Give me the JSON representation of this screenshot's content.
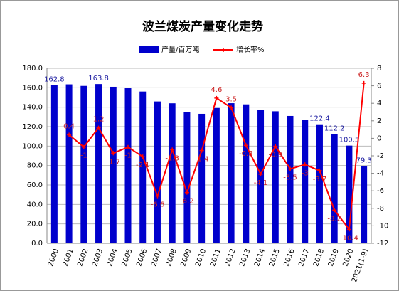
{
  "chart_data": {
    "type": "bar_line",
    "title": "波兰煤炭产量变化走势",
    "categories": [
      "2000",
      "2001",
      "2002",
      "2003",
      "2004",
      "2005",
      "2006",
      "2007",
      "2008",
      "2009",
      "2010",
      "2011",
      "2012",
      "2013",
      "2014",
      "2015",
      "2016",
      "2017",
      "2018",
      "2019",
      "2020",
      "2021(1-9)"
    ],
    "series": [
      {
        "name": "产量/百万吨",
        "color": "#0000cc",
        "type": "bar",
        "values": [
          162.8,
          163.5,
          161.9,
          163.8,
          161.0,
          159.5,
          156.1,
          145.9,
          144.0,
          135.1,
          133.2,
          139.2,
          144.1,
          142.9,
          137.1,
          135.8,
          131.0,
          127.1,
          122.4,
          112.2,
          100.5,
          79.3
        ],
        "value_labels": [
          "162.8",
          null,
          null,
          "163.8",
          null,
          null,
          null,
          null,
          null,
          null,
          null,
          null,
          null,
          null,
          null,
          null,
          null,
          null,
          "122.4",
          "112.2",
          "100.5",
          "79.3"
        ]
      },
      {
        "name": "增长率%",
        "color": "#ff0000",
        "type": "line",
        "axis": "y2",
        "values": [
          null,
          0.4,
          -1.0,
          1.2,
          -1.7,
          -1.0,
          -2.1,
          -6.6,
          -1.3,
          -6.2,
          -1.4,
          4.6,
          3.5,
          -0.8,
          -4.1,
          -0.9,
          -3.5,
          -3.0,
          -3.7,
          -8.2,
          -10.4,
          6.3
        ]
      }
    ],
    "ylim": [
      0,
      180
    ],
    "yticks": [
      {
        "value": 0,
        "label": "0.0"
      },
      {
        "value": 20,
        "label": "20.0"
      },
      {
        "value": 40,
        "label": "40.0"
      },
      {
        "value": 60,
        "label": "60.0"
      },
      {
        "value": 80,
        "label": "80.0"
      },
      {
        "value": 100,
        "label": "100.0"
      },
      {
        "value": 120,
        "label": "120.0"
      },
      {
        "value": 140,
        "label": "140.0"
      },
      {
        "value": 160,
        "label": "160.0"
      },
      {
        "value": 180,
        "label": "180.0"
      }
    ],
    "y2lim": [
      -12,
      8
    ],
    "y2ticks": [
      -12,
      -10,
      -8,
      -6,
      -4,
      -2,
      0,
      2,
      4,
      6,
      8
    ],
    "grid": true
  }
}
